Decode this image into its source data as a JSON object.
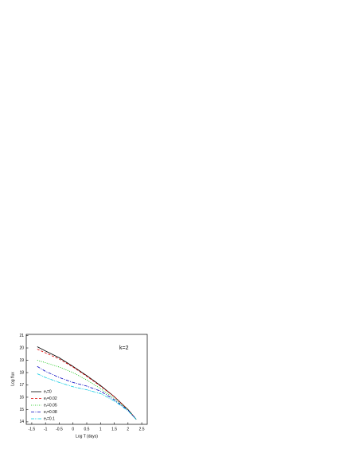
{
  "chart_data": {
    "type": "line",
    "xlabel": "Log T (days)",
    "ylabel": "Log flux",
    "annotation": "k=2",
    "x": [
      -1.3,
      -1.0,
      -0.5,
      0.0,
      0.5,
      1.0,
      1.5,
      2.0,
      2.3
    ],
    "series": [
      {
        "name": "eᵣ=0",
        "color": "#000000",
        "dash": "none",
        "values": [
          20.1,
          19.75,
          19.2,
          18.5,
          17.75,
          16.95,
          16.05,
          15.0,
          14.2
        ]
      },
      {
        "name": "eᵣ=0.02",
        "color": "#e00000",
        "dash": "3,2",
        "values": [
          19.9,
          19.6,
          19.1,
          18.45,
          17.7,
          16.9,
          16.05,
          15.0,
          14.2
        ]
      },
      {
        "name": "eᵣ=0.05",
        "color": "#00c000",
        "dash": "1,1.5",
        "values": [
          19.0,
          18.8,
          18.45,
          18.0,
          17.4,
          16.7,
          15.9,
          15.0,
          14.2
        ]
      },
      {
        "name": "eᵣ=0.08",
        "color": "#0000c0",
        "dash": "4,1.5,1,1.5",
        "values": [
          18.5,
          18.1,
          17.6,
          17.2,
          16.9,
          16.5,
          15.8,
          14.95,
          14.2
        ]
      },
      {
        "name": "eᵣ=0.1",
        "color": "#00c8e0",
        "dash": "4,1,1,1,1,1",
        "values": [
          17.9,
          17.6,
          17.2,
          16.85,
          16.6,
          16.3,
          15.7,
          14.9,
          14.2
        ]
      }
    ],
    "xlim": [
      -1.7,
      2.7
    ],
    "ylim": [
      13.8,
      21.1
    ],
    "xticks": [
      -1.5,
      -1.0,
      -0.5,
      0.0,
      0.5,
      1.0,
      1.5,
      2.0,
      2.5
    ],
    "yticks": [
      14,
      15,
      16,
      17,
      18,
      19,
      20,
      21
    ]
  }
}
